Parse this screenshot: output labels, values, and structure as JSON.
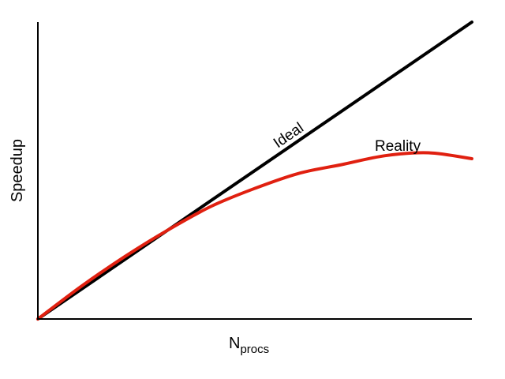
{
  "chart_data": {
    "type": "line",
    "title": "",
    "xlabel": "N",
    "xlabel_subscript": "procs",
    "ylabel": "Speedup",
    "grid": false,
    "axis_ticks": false,
    "xlim": [
      0,
      1
    ],
    "ylim": [
      0,
      1
    ],
    "series": [
      {
        "name": "Ideal",
        "color": "#000000",
        "x": [
          0,
          1
        ],
        "y": [
          0,
          1
        ]
      },
      {
        "name": "Reality",
        "color": "#e02010",
        "x": [
          0,
          0.1,
          0.2,
          0.3,
          0.4,
          0.5,
          0.6,
          0.7,
          0.8,
          0.9,
          1.0
        ],
        "y": [
          0,
          0.11,
          0.21,
          0.3,
          0.38,
          0.44,
          0.49,
          0.52,
          0.55,
          0.56,
          0.54
        ]
      }
    ]
  }
}
